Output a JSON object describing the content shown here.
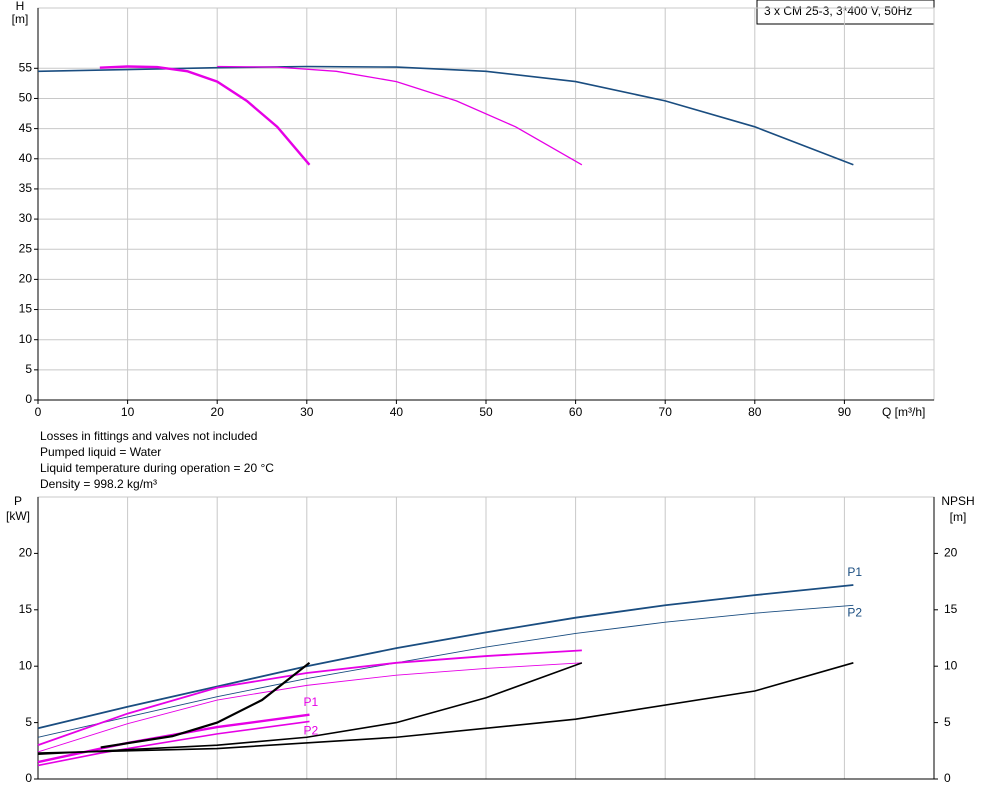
{
  "chart_data": [
    {
      "type": "line",
      "title": "3 x CM 25-3, 3*400 V, 50Hz",
      "ylabel": "H",
      "yunit": "[m]",
      "xlabel": "Q [m³/h]",
      "xlim": [
        0,
        100
      ],
      "xticks": [
        0,
        10,
        20,
        30,
        40,
        50,
        60,
        70,
        80,
        90
      ],
      "ylim": [
        0,
        65
      ],
      "yticks": [
        0,
        5,
        10,
        15,
        20,
        25,
        30,
        35,
        40,
        45,
        50,
        55
      ],
      "grid": true,
      "notes": [
        "Losses in fittings and valves not included",
        "Pumped liquid = Water",
        "Liquid temperature during operation = 20 °C",
        "Density = 998.2 kg/m³"
      ],
      "series": [
        {
          "color": "#1a4d80",
          "x": [
            0,
            10,
            20,
            30,
            40,
            50,
            60,
            70,
            80,
            91
          ],
          "values": [
            54.5,
            54.8,
            55.1,
            55.3,
            55.2,
            54.5,
            52.8,
            49.6,
            45.3,
            39
          ]
        },
        {
          "color": "#e600e6",
          "x": [
            20,
            26.7,
            33.3,
            40,
            46.7,
            53.3,
            60.7
          ],
          "values": [
            55.3,
            55.2,
            54.5,
            52.8,
            49.6,
            45.3,
            39
          ]
        },
        {
          "color": "#e600e6",
          "x": [
            6.9,
            10,
            13.3,
            16.7,
            20,
            23.3,
            26.7,
            30.3
          ],
          "values": [
            55.1,
            55.3,
            55.2,
            54.5,
            52.8,
            49.6,
            45.3,
            39
          ]
        }
      ]
    },
    {
      "type": "line",
      "ylabel": "P",
      "yunit": "[kW]",
      "y2label": "NPSH",
      "y2unit": "[m]",
      "xlim": [
        0,
        100
      ],
      "xticks": [
        0,
        10,
        20,
        30,
        40,
        50,
        60,
        70,
        80,
        90
      ],
      "ylim": [
        0,
        25
      ],
      "yticks": [
        0,
        5,
        10,
        15,
        20
      ],
      "y2lim": [
        0,
        25
      ],
      "y2ticks": [
        0,
        5,
        10,
        15,
        20
      ],
      "series": [
        {
          "name": "P1",
          "color": "#1a4d80",
          "x": [
            0,
            10,
            20,
            30,
            40,
            50,
            60,
            70,
            80,
            91
          ],
          "values": [
            4.5,
            6.4,
            8.2,
            10,
            11.6,
            13,
            14.3,
            15.4,
            16.3,
            17.2
          ]
        },
        {
          "name": "P2",
          "color": "#1a4d80",
          "x": [
            0,
            10,
            20,
            30,
            40,
            50,
            60,
            70,
            80,
            91
          ],
          "values": [
            3.7,
            5.5,
            7.3,
            8.9,
            10.3,
            11.7,
            12.9,
            13.9,
            14.7,
            15.4
          ]
        },
        {
          "color": "#e600e6",
          "x": [
            0,
            10,
            20,
            30,
            40,
            50,
            60.7
          ],
          "values": [
            3,
            5.8,
            8.1,
            9.4,
            10.3,
            10.9,
            11.4
          ]
        },
        {
          "color": "#e600e6",
          "x": [
            0,
            10,
            20,
            30,
            40,
            50,
            60.7
          ],
          "values": [
            2.4,
            4.9,
            7,
            8.3,
            9.2,
            9.8,
            10.3
          ]
        },
        {
          "name": "P1",
          "color": "#e600e6",
          "x": [
            0,
            7,
            10,
            20,
            30.3
          ],
          "values": [
            1.5,
            2.7,
            3.2,
            4.6,
            5.7
          ]
        },
        {
          "name": "P2",
          "color": "#e600e6",
          "x": [
            0,
            7,
            10,
            20,
            30.3
          ],
          "values": [
            1.2,
            2.3,
            2.7,
            4,
            5.1
          ]
        },
        {
          "color": "#000000",
          "axis": "y2",
          "x": [
            0,
            20,
            40,
            60,
            80,
            91
          ],
          "values": [
            2.3,
            2.7,
            3.7,
            5.3,
            7.8,
            10.3
          ]
        },
        {
          "color": "#000000",
          "axis": "y2",
          "x": [
            0,
            20,
            30,
            40,
            50,
            60.7
          ],
          "values": [
            2.2,
            3,
            3.7,
            5,
            7.2,
            10.3
          ]
        },
        {
          "color": "#000000",
          "axis": "y2",
          "x": [
            7,
            15,
            20,
            25,
            30.3
          ],
          "values": [
            2.8,
            3.8,
            5,
            7,
            10.3
          ]
        }
      ]
    }
  ]
}
